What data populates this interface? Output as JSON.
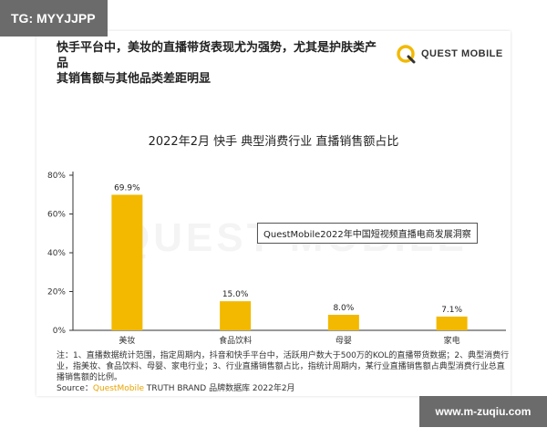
{
  "tg_tag": "TG: MYYJJPP",
  "headline": {
    "line1": "快手平台中，美妆的直播带货表现尤为强势，尤其是护肤类产品",
    "line2": "其销售额与其他品类差距明显"
  },
  "brand": {
    "name": "QUEST MOBILE",
    "color": "#f2b900"
  },
  "watermark": "QUEST MOBILE",
  "callout": "QuestMobile2022年中国短视频直播电商发展洞察",
  "chart_data": {
    "type": "bar",
    "title": "2022年2月 快手 典型消费行业 直播销售额占比",
    "categories": [
      "美妆",
      "食品饮料",
      "母婴",
      "家电"
    ],
    "values": [
      69.9,
      15.0,
      8.0,
      7.1
    ],
    "data_labels": [
      "69.9%",
      "15.0%",
      "8.0%",
      "7.1%"
    ],
    "y_ticks": [
      {
        "value": 0,
        "label": "0%"
      },
      {
        "value": 20,
        "label": "20%"
      },
      {
        "value": 40,
        "label": "40%"
      },
      {
        "value": 60,
        "label": "60%"
      },
      {
        "value": 80,
        "label": "80%"
      }
    ],
    "ylim": [
      0,
      80
    ],
    "bar_color": "#f2b900",
    "xlabel": "",
    "ylabel": "",
    "grid": false,
    "legend": "none"
  },
  "footnote": "注：1、直播数据统计范围，指定周期内，抖音和快手平台中，活跃用户数大于500万的KOL的直播带货数据；2、典型消费行业，指美妆、食品饮料、母婴、家电行业；3、行业直播销售额占比，指统计周期内，某行业直播销售额占典型消费行业总直播销售额的比例。",
  "source": {
    "prefix": "Source：",
    "highlight": "QuestMobile",
    "suffix": " TRUTH BRAND 品牌数据库 2022年2月"
  },
  "site_tag": "www.m-zuqiu.com"
}
